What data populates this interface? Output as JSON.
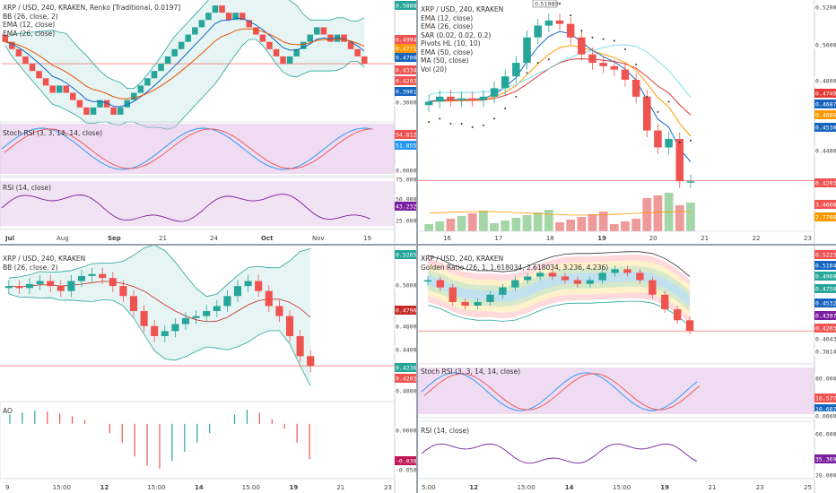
{
  "colors": {
    "up": "#26a69a",
    "down": "#ef5350",
    "ema_fast": "#1565c0",
    "ema_slow": "#e65100",
    "bb_fill": "#e0f2f1",
    "bb_line": "#26a69a",
    "osc_fill": "#e1bee7",
    "rsi_line": "#7b1fa2",
    "stoch_k": "#2196f3",
    "stoch_d": "#ef5350",
    "vol_up": "#a5d6a7",
    "vol_down": "#ef9a9a",
    "price_line": "#ef5350"
  },
  "panels": {
    "tl": {
      "legend": [
        "BB (26, close, 2)",
        "EMA (12, close)",
        "EMA (26, close)"
      ],
      "sub1_legend": "Stoch RSI (3, 3, 14, 14, close)",
      "sub2_legend": "RSI (14, close)",
      "x_ticks": [
        "Jul",
        "Aug",
        "Sep",
        "21",
        "24",
        "Oct",
        "Nov",
        "19"
      ],
      "price_tags": [
        "0.58884",
        "0.49947",
        "0.47719",
        "0.47009",
        "0.43340",
        "0.42035",
        "0.39010",
        "0.30000"
      ],
      "sub1_tags": [
        "54.8128",
        "51.8551",
        "0.0000"
      ],
      "sub2_tags": [
        "75.0000",
        "50.0000",
        "43.2325",
        "25.0000"
      ]
    },
    "tr": {
      "legend": [
        "EMA (12, close)",
        "EMA (26, close)",
        "SAR (0.02, 0.02, 0.2)",
        "Pivots HL (10, 10)",
        "EMA (50, close)",
        "MA (50, close)",
        "Vol (20)"
      ],
      "top_label": "0.51983",
      "x_ticks": [
        "16",
        "17",
        "18",
        "19",
        "20",
        "21",
        "22",
        "23"
      ],
      "price_tags": [
        "0.52000",
        "0.50000",
        "0.48000",
        "0.47497",
        "0.46870",
        "0.46669",
        "0.45301",
        "0.44000",
        "0.42035",
        "3.4666",
        "2.7768"
      ]
    },
    "bl": {
      "legend": [
        "BB (26, close, 2)"
      ],
      "sub_legend": "AO",
      "x_ticks": [
        "9",
        "15:00",
        "12",
        "15:00",
        "14",
        "15:00",
        "19",
        "21",
        "23"
      ],
      "price_tags": [
        "0.52652",
        "0.50000",
        "0.47907",
        "0.46000",
        "0.44000",
        "0.42367",
        "0.42035",
        "0.40000"
      ],
      "sub_tags": [
        "0.0000",
        "-0.0384",
        "-0.0500"
      ]
    },
    "br": {
      "legend": [
        "Golden Ratio (26, 1, 1.618034, 2.618034, 3.236, 4.236)"
      ],
      "sub1_legend": "Stoch RSI (3, 3, 14, 14, close)",
      "sub2_legend": "RSI (14, close)",
      "x_ticks": [
        "5:00",
        "12",
        "15:00",
        "14",
        "15:00",
        "19",
        "21",
        "23",
        "25"
      ],
      "price_tags": [
        "0.52231",
        "0.51045",
        "0.49699",
        "0.47507",
        "0.45321",
        "0.43978",
        "0.42035",
        "0.40433",
        "0.38147"
      ],
      "sub1_tags": [
        "80.0000",
        "16.5778",
        "10.6075",
        "0.0000"
      ],
      "sub2_tags": [
        "60.0000",
        "35.3693",
        "20.0000"
      ]
    }
  },
  "chart_data": [
    {
      "type": "line",
      "title": "XRP / USD, 240, KRAKEN, Renko [Traditional, 0.0197]",
      "x_ticks": [
        "Jul",
        "Aug",
        "Sep",
        "21",
        "24",
        "Oct",
        "Nov",
        "19"
      ],
      "series": [
        {
          "name": "Renko close",
          "values": [
            0.49,
            0.47,
            0.45,
            0.43,
            0.41,
            0.39,
            0.37,
            0.35,
            0.37,
            0.35,
            0.33,
            0.31,
            0.29,
            0.31,
            0.33,
            0.31,
            0.29,
            0.31,
            0.33,
            0.35,
            0.37,
            0.39,
            0.41,
            0.43,
            0.45,
            0.47,
            0.49,
            0.51,
            0.53,
            0.55,
            0.57,
            0.59,
            0.57,
            0.55,
            0.57,
            0.55,
            0.53,
            0.51,
            0.49,
            0.47,
            0.45,
            0.43,
            0.45,
            0.47,
            0.49,
            0.51,
            0.53,
            0.51,
            0.49,
            0.51,
            0.49,
            0.47,
            0.45,
            0.43
          ]
        }
      ],
      "ylim": [
        0.28,
        0.6
      ]
    },
    {
      "type": "bar",
      "title": "XRP / USD, 240, KRAKEN",
      "x_ticks": [
        "16",
        "17",
        "18",
        "19",
        "20",
        "21",
        "22",
        "23"
      ],
      "series": [
        {
          "name": "close",
          "values": [
            0.467,
            0.47,
            0.468,
            0.469,
            0.468,
            0.47,
            0.475,
            0.482,
            0.49,
            0.505,
            0.512,
            0.515,
            0.513,
            0.505,
            0.495,
            0.49,
            0.488,
            0.486,
            0.48,
            0.47,
            0.45,
            0.44,
            0.445,
            0.42,
            0.42
          ]
        }
      ],
      "ylim": [
        0.4,
        0.525
      ]
    },
    {
      "type": "bar",
      "title": "XRP / USD, 240, KRAKEN",
      "x_ticks": [
        "9",
        "15:00",
        "12",
        "15:00",
        "14",
        "15:00",
        "19",
        "21",
        "23"
      ],
      "series": [
        {
          "name": "AO",
          "values": [
            0.01,
            0.012,
            0.014,
            0.013,
            0.011,
            0.008,
            0.004,
            0.0,
            -0.01,
            -0.02,
            -0.035,
            -0.045,
            -0.048,
            -0.04,
            -0.03,
            -0.02,
            -0.01,
            0.0,
            0.01,
            0.015,
            0.012,
            0.005,
            -0.005,
            -0.02,
            -0.038
          ]
        }
      ],
      "ylim": [
        -0.055,
        0.02
      ]
    },
    {
      "type": "line",
      "title": "XRP / USD, 240, KRAKEN",
      "x_ticks": [
        "5:00",
        "12",
        "15:00",
        "14",
        "15:00",
        "19",
        "21",
        "23",
        "25"
      ],
      "series": [
        {
          "name": "close",
          "values": [
            0.49,
            0.48,
            0.46,
            0.455,
            0.46,
            0.47,
            0.48,
            0.49,
            0.495,
            0.5,
            0.495,
            0.49,
            0.485,
            0.49,
            0.5,
            0.505,
            0.5,
            0.49,
            0.47,
            0.45,
            0.435,
            0.42
          ]
        }
      ],
      "ylim": [
        0.38,
        0.53
      ]
    }
  ]
}
